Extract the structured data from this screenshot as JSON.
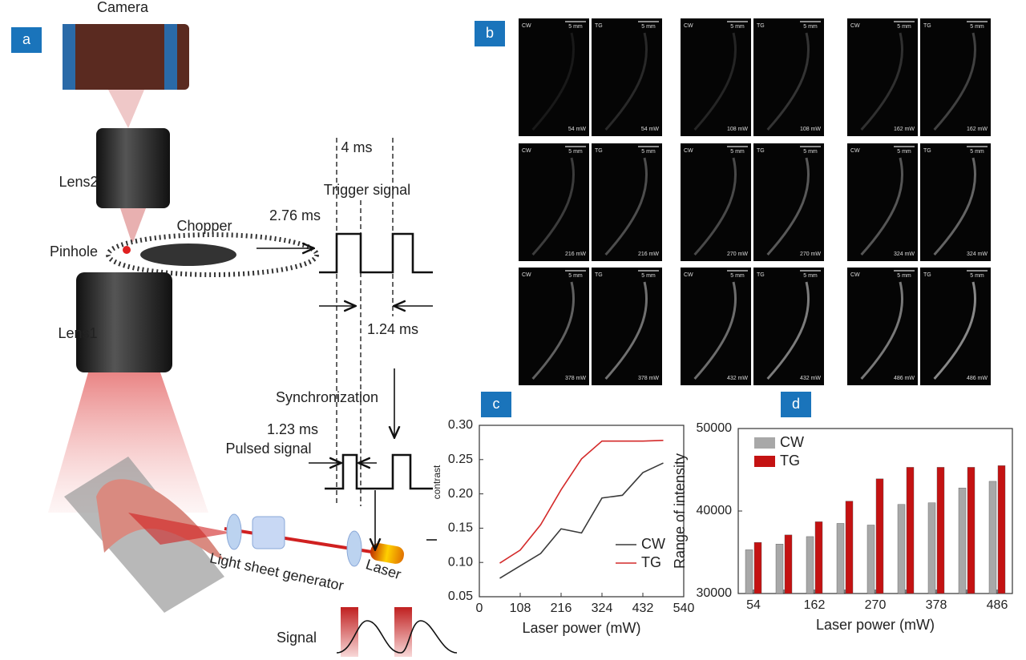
{
  "panel_labels": [
    "a",
    "b",
    "c",
    "d"
  ],
  "diagram": {
    "camera": "Camera",
    "lens2": "Lens2",
    "chopper": "Chopper",
    "pinhole": "Pinhole",
    "lens1": "Lens1",
    "period": "4 ms",
    "trigger": "Trigger signal",
    "open_time": "2.76 ms",
    "closed_time": "1.24 ms",
    "synchronization": "Synchronization",
    "pulse_width": "1.23 ms",
    "pulsed": "Pulsed signal",
    "light_sheet": "Light sheet generator",
    "laser": "Laser",
    "signal": "Signal"
  },
  "images": {
    "left": "CW",
    "right": "TG",
    "scale_bar": "5 mm",
    "powers": [
      "54 mW",
      "108 mW",
      "162 mW",
      "216 mW",
      "270 mW",
      "324 mW",
      "378 mW",
      "432 mW",
      "486 mW"
    ]
  },
  "chart_data": [
    {
      "type": "line",
      "xlabel": "Laser power (mW)",
      "ylabel": "I",
      "ylabel_subscript": "contrast",
      "x": [
        54,
        108,
        162,
        216,
        270,
        324,
        378,
        432,
        486
      ],
      "series": [
        {
          "name": "CW",
          "color": "#3a3a3a",
          "values": [
            0.077,
            0.095,
            0.113,
            0.149,
            0.143,
            0.194,
            0.198,
            0.231,
            0.245
          ]
        },
        {
          "name": "TG",
          "color": "#d42a2a",
          "values": [
            0.099,
            0.118,
            0.155,
            0.206,
            0.251,
            0.277,
            0.277,
            0.277,
            0.278
          ]
        }
      ],
      "xlim": [
        0,
        540
      ],
      "xticks": [
        0,
        108,
        216,
        324,
        432,
        540
      ],
      "ylim": [
        0.05,
        0.3
      ],
      "yticks": [
        0.05,
        {
          "value": 0.1,
          "label": "0.10"
        },
        0.15,
        {
          "value": 0.2,
          "label": "0.20"
        },
        0.25,
        {
          "value": 0.3,
          "label": "0.30"
        }
      ],
      "legend": "lower right"
    },
    {
      "type": "bar",
      "xlabel": "Laser power (mW)",
      "ylabel": "Range of intensity",
      "categories": [
        "54",
        null,
        "162",
        null,
        "270",
        null,
        "378",
        null,
        "486"
      ],
      "series": [
        {
          "name": "CW",
          "color": "#a8a8a8",
          "values": [
            35300,
            36000,
            36900,
            38500,
            38300,
            40800,
            41000,
            42800,
            43600
          ]
        },
        {
          "name": "TG",
          "color": "#c41212",
          "values": [
            36200,
            37100,
            38700,
            41200,
            43900,
            45300,
            45300,
            45300,
            45500
          ]
        }
      ],
      "ylim": [
        30000,
        50000
      ],
      "yticks": [
        30000,
        40000,
        50000
      ],
      "legend": "upper left"
    }
  ]
}
